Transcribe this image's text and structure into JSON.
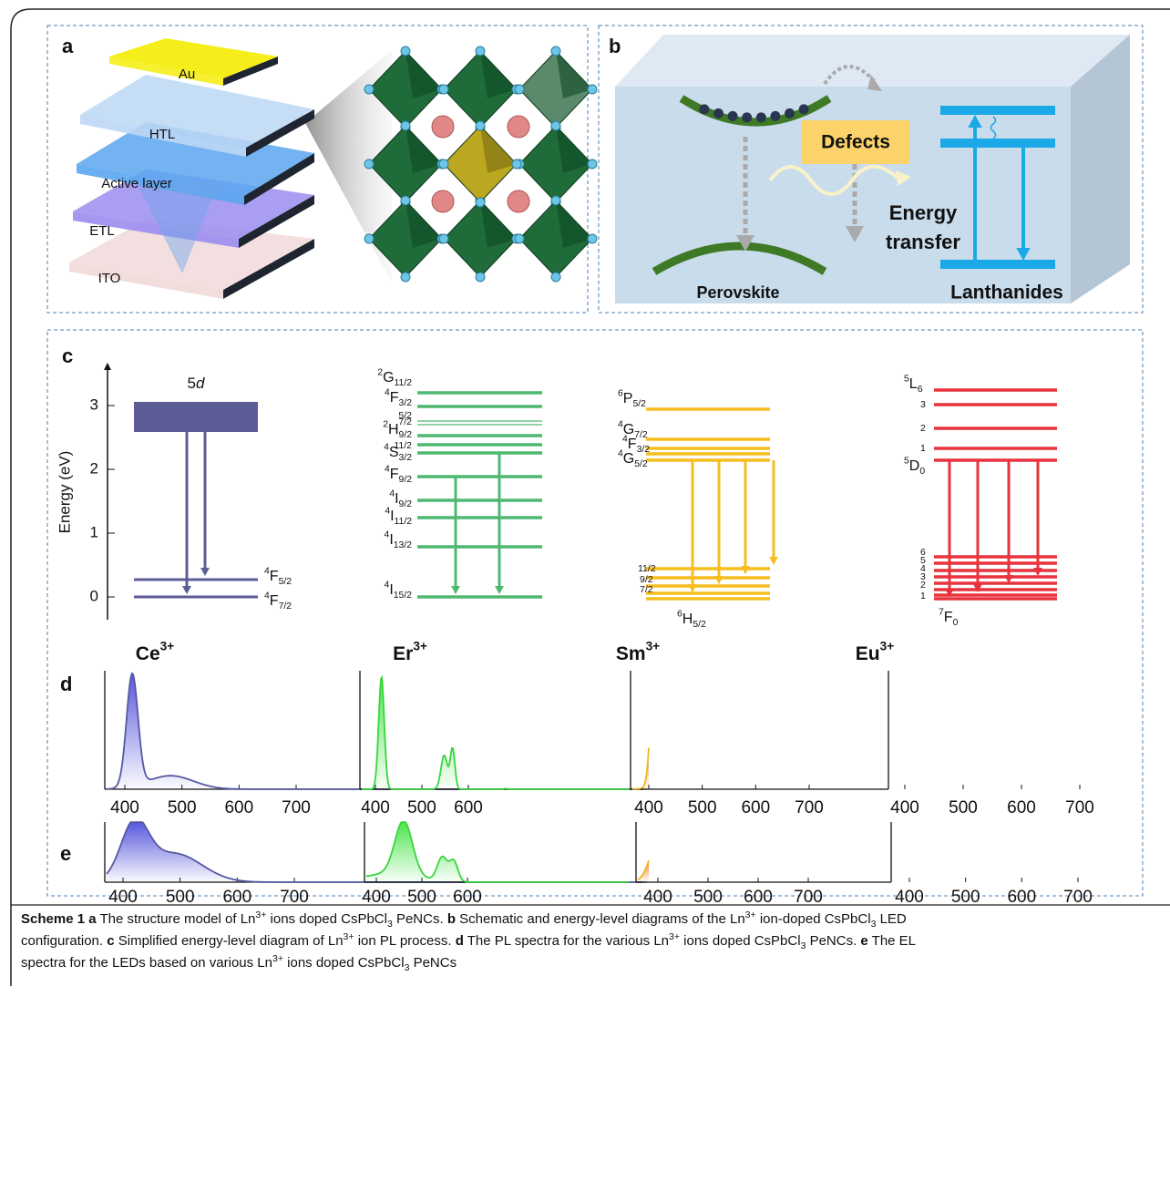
{
  "panel_a": {
    "label": "a",
    "layers": [
      "Au",
      "HTL",
      "Active layer",
      "ETL",
      "ITO"
    ]
  },
  "panel_b": {
    "label": "b",
    "defects": "Defects",
    "energy_transfer": [
      "Energy",
      "transfer"
    ],
    "perovskite": "Perovskite",
    "lanthanides": "Lanthanides"
  },
  "panel_c": {
    "label": "c",
    "axis_label": "Energy (eV)",
    "ticks": [
      0,
      1,
      2,
      3
    ],
    "ce": {
      "band": {
        "main": "5",
        "italic": "d"
      },
      "levels": [
        {
          "sup": "4",
          "main": "F",
          "sub": "5/2"
        },
        {
          "sup": "4",
          "main": "F",
          "sub": "7/2"
        }
      ]
    },
    "er": {
      "levels": [
        {
          "sup": "2",
          "main": "G",
          "sub": "11/2"
        },
        {
          "sup": "4",
          "main": "F",
          "sub": "3/2"
        },
        {
          "small": "5/2"
        },
        {
          "small": "7/2"
        },
        {
          "sup": "2",
          "main": "H",
          "sub": "9/2"
        },
        {
          "small": "11/2"
        },
        {
          "sup": "4",
          "main": "S",
          "sub": "3/2"
        },
        {
          "sup": "4",
          "main": "F",
          "sub": "9/2"
        },
        {
          "sup": "4",
          "main": "I",
          "sub": "9/2"
        },
        {
          "sup": "4",
          "main": "I",
          "sub": "11/2"
        },
        {
          "sup": "4",
          "main": "I",
          "sub": "13/2"
        },
        {
          "sup": "4",
          "main": "I",
          "sub": "15/2"
        }
      ]
    },
    "sm": {
      "levels": [
        {
          "sup": "6",
          "main": "P",
          "sub": "5/2"
        },
        {
          "sup": "4",
          "main": "G",
          "sub": "7/2"
        },
        {
          "sup": "4",
          "main": "F",
          "sub": "3/2"
        },
        {
          "sup": "4",
          "main": "G",
          "sub": "5/2"
        },
        {
          "small": "11/2"
        },
        {
          "small": "9/2"
        },
        {
          "small": "7/2"
        },
        {
          "sup": "6",
          "main": "H",
          "sub": "5/2"
        }
      ]
    },
    "eu": {
      "levels": [
        {
          "sup": "5",
          "main": "L",
          "sub": "6"
        },
        {
          "small": "3"
        },
        {
          "small": "2"
        },
        {
          "small": "1"
        },
        {
          "sup": "5",
          "main": "D",
          "sub": "0"
        },
        {
          "small": "6"
        },
        {
          "small": "5"
        },
        {
          "small": "4"
        },
        {
          "small": "3"
        },
        {
          "small": "2"
        },
        {
          "small": "1"
        },
        {
          "sup": "7",
          "main": "F",
          "sub": "0"
        }
      ]
    }
  },
  "ions": [
    {
      "main": "Ce",
      "charge": "3+"
    },
    {
      "main": "Er",
      "charge": "3+"
    },
    {
      "main": "Sm",
      "charge": "3+"
    },
    {
      "main": "Eu",
      "charge": "3+"
    }
  ],
  "panel_d": {
    "label": "d",
    "plots": [
      {
        "ticks": [
          400,
          500,
          600,
          700
        ]
      },
      {
        "ticks": [
          400,
          500,
          600
        ]
      },
      {
        "ticks": [
          400,
          500,
          600,
          700
        ]
      },
      {
        "ticks": [
          400,
          500,
          600,
          700
        ]
      }
    ]
  },
  "panel_e": {
    "label": "e",
    "plots": [
      {
        "ticks": [
          400,
          500,
          600,
          700
        ]
      },
      {
        "ticks": [
          400,
          500,
          600
        ]
      },
      {
        "ticks": [
          400,
          500,
          600,
          700
        ]
      },
      {
        "ticks": [
          400,
          500,
          600,
          700
        ]
      }
    ]
  },
  "caption": {
    "lines": [
      [
        {
          "text": "Scheme 1",
          "style": "bold"
        },
        {
          "text": " a",
          "style": "bold"
        },
        {
          "text": " The structure model of Ln"
        },
        {
          "text": "3+",
          "style": "sup"
        },
        {
          "text": " ions doped CsPbCl"
        },
        {
          "text": "3",
          "style": "sub"
        },
        {
          "text": " PeNCs. "
        },
        {
          "text": "b",
          "style": "bold"
        },
        {
          "text": " Schematic and energy-level diagrams of the Ln"
        },
        {
          "text": "3+",
          "style": "sup"
        },
        {
          "text": " ion-doped CsPbCl"
        },
        {
          "text": "3",
          "style": "sub"
        },
        {
          "text": " LED"
        }
      ],
      [
        {
          "text": "configuration. "
        },
        {
          "text": "c",
          "style": "bold"
        },
        {
          "text": " Simplified energy-level diagram of Ln"
        },
        {
          "text": "3+",
          "style": "sup"
        },
        {
          "text": " ion PL process. "
        },
        {
          "text": "d",
          "style": "bold"
        },
        {
          "text": " The PL spectra for the various Ln"
        },
        {
          "text": "3+",
          "style": "sup"
        },
        {
          "text": " ions doped CsPbCl"
        },
        {
          "text": "3",
          "style": "sub"
        },
        {
          "text": " PeNCs. "
        },
        {
          "text": "e",
          "style": "bold"
        },
        {
          "text": " The EL"
        }
      ],
      [
        {
          "text": "spectra for the LEDs based on various Ln"
        },
        {
          "text": "3+",
          "style": "sup"
        },
        {
          "text": " ions doped CsPbCl"
        },
        {
          "text": "3",
          "style": "sub"
        },
        {
          "text": " PeNCs"
        }
      ]
    ]
  }
}
